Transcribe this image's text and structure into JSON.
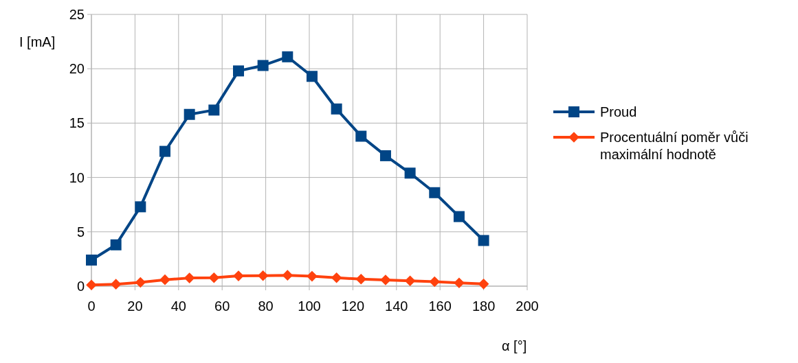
{
  "chart_data": {
    "type": "line",
    "xlabel": "α [°]",
    "ylabel": "I [mA]",
    "x": [
      0,
      11.25,
      22.5,
      33.75,
      45,
      56.25,
      67.5,
      78.75,
      90,
      101.25,
      112.5,
      123.75,
      135,
      146.25,
      157.5,
      168.75,
      180
    ],
    "series": [
      {
        "name": "Proud",
        "color": "#004586",
        "marker": "square",
        "values": [
          2.4,
          3.8,
          7.3,
          12.4,
          15.8,
          16.2,
          19.8,
          20.3,
          21.1,
          19.3,
          16.3,
          13.8,
          12.0,
          10.4,
          8.6,
          6.4,
          4.2
        ]
      },
      {
        "name": "Procentuální poměr vůči maximální hodnotě",
        "color": "#ff420e",
        "marker": "diamond",
        "values": [
          0.11,
          0.18,
          0.35,
          0.59,
          0.75,
          0.77,
          0.94,
          0.96,
          1.0,
          0.91,
          0.77,
          0.65,
          0.57,
          0.49,
          0.41,
          0.3,
          0.2
        ]
      }
    ],
    "xlim": [
      0,
      200
    ],
    "xticks": [
      0,
      20,
      40,
      60,
      80,
      100,
      120,
      140,
      160,
      180,
      200
    ],
    "ylim": [
      0,
      25
    ],
    "yticks": [
      0,
      5,
      10,
      15,
      20,
      25
    ],
    "grid": true,
    "legend": "right",
    "line_style": "solid"
  }
}
